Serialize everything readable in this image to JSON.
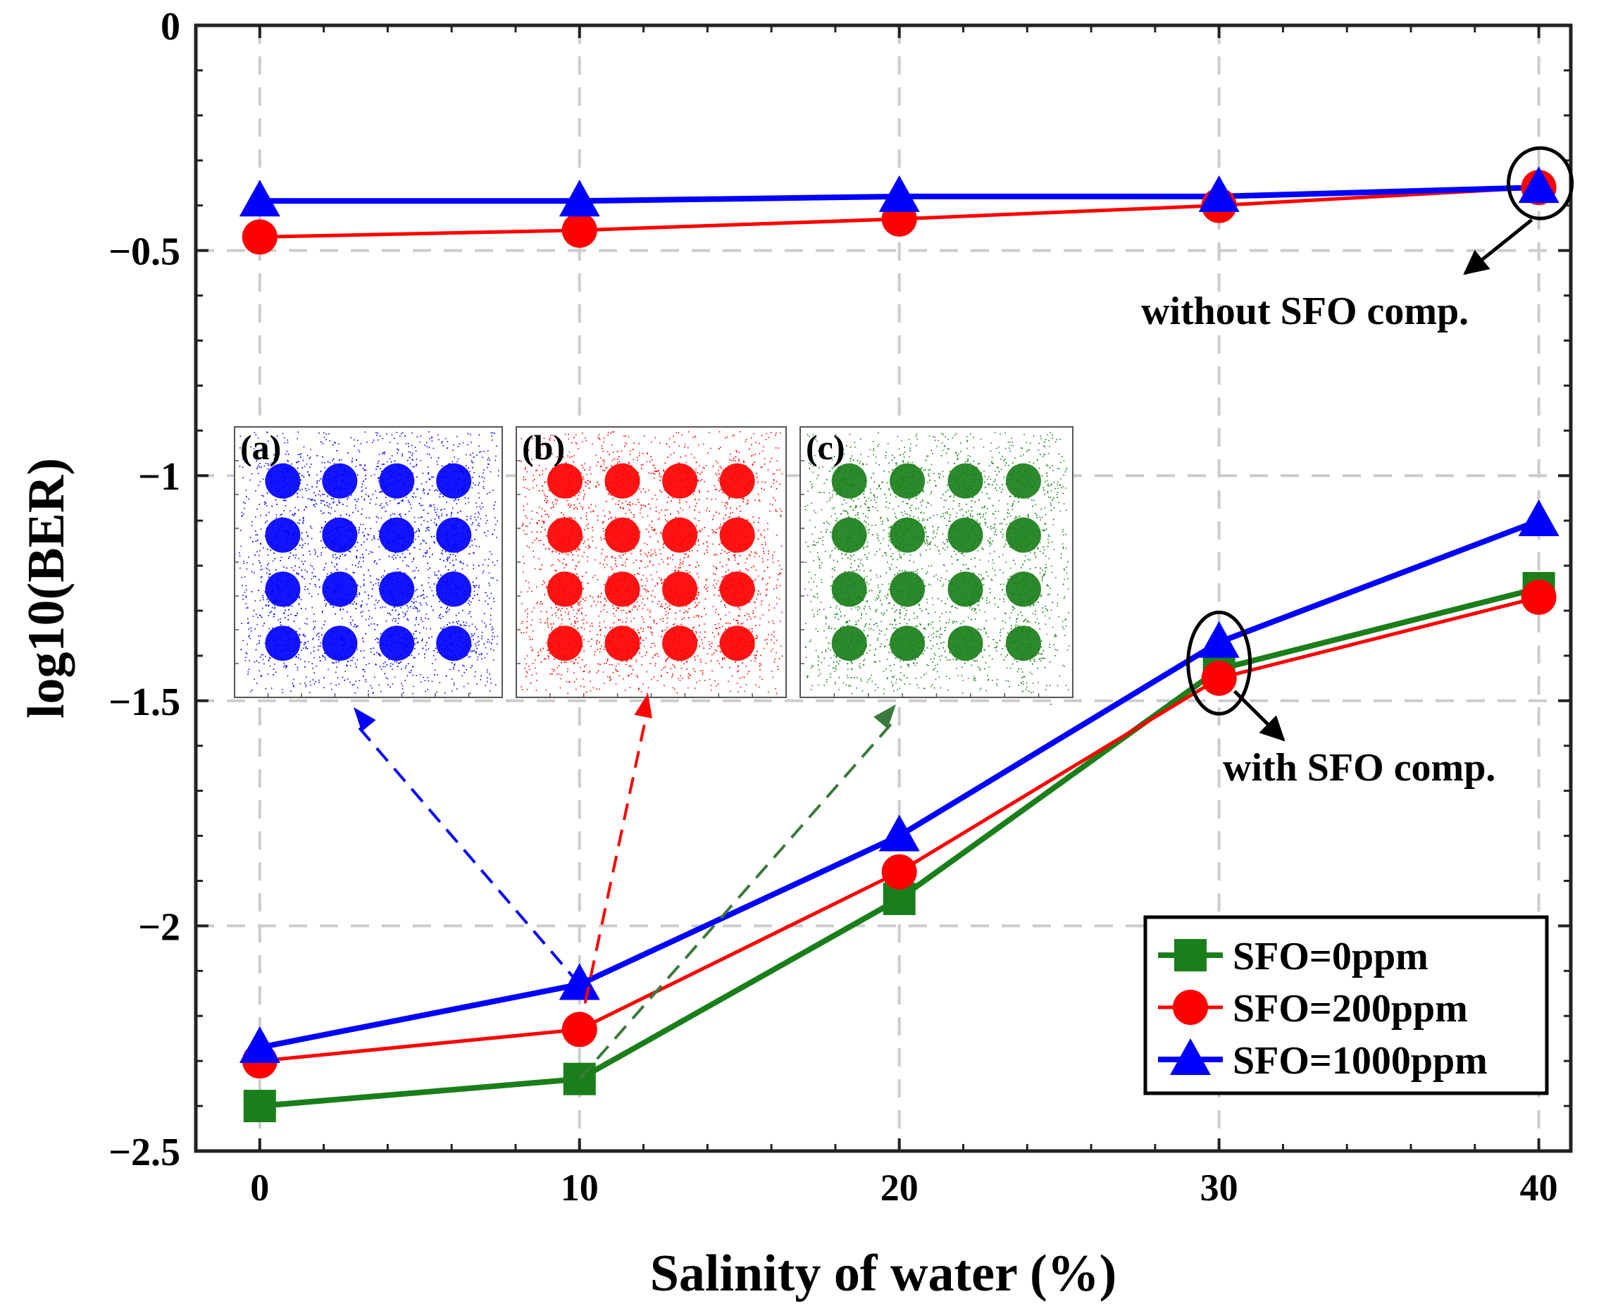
{
  "colors": {
    "green": "#1a7f1a",
    "red": "#ff0000",
    "blue": "#0000ff",
    "dark_green": "#3a7a3a",
    "grid": "#cccccc",
    "axis": "#222222"
  },
  "chart_data": {
    "type": "line",
    "xlabel": "Salinity of water (%)",
    "ylabel": "log10(BER)",
    "xlim": [
      -2,
      41
    ],
    "ylim": [
      -2.5,
      0
    ],
    "xticks": [
      0,
      10,
      20,
      30,
      40
    ],
    "xtick_labels": [
      "0",
      "10",
      "20",
      "30",
      "40"
    ],
    "yticks": [
      0,
      -0.5,
      -1,
      -1.5,
      -2,
      -2.5
    ],
    "ytick_labels": [
      "0",
      "−0.5",
      "−1",
      "−1.5",
      "−2",
      "−2.5"
    ],
    "grid": true,
    "x": [
      0,
      10,
      20,
      30,
      40
    ],
    "series": [
      {
        "name": "SFO=0ppm",
        "group": "with",
        "marker": "square",
        "color": "green",
        "values": [
          -2.4,
          -2.34,
          -1.94,
          -1.43,
          -1.25
        ]
      },
      {
        "name": "SFO=200ppm",
        "group": "with",
        "marker": "circle",
        "color": "red",
        "values": [
          -2.3,
          -2.23,
          -1.88,
          -1.45,
          -1.27
        ]
      },
      {
        "name": "SFO=1000ppm",
        "group": "with",
        "marker": "triangle",
        "color": "blue",
        "values": [
          -2.27,
          -2.13,
          -1.8,
          -1.37,
          -1.1
        ]
      },
      {
        "name": "SFO=200ppm",
        "group": "without",
        "marker": "circle",
        "color": "red",
        "values": [
          -0.47,
          -0.455,
          -0.43,
          -0.4,
          -0.36
        ]
      },
      {
        "name": "SFO=1000ppm",
        "group": "without",
        "marker": "triangle",
        "color": "blue",
        "values": [
          -0.39,
          -0.39,
          -0.38,
          -0.38,
          -0.36
        ]
      }
    ],
    "legend": {
      "position": "bottom-right",
      "entries": [
        {
          "label": "SFO=0ppm",
          "marker": "square",
          "color": "green"
        },
        {
          "label": "SFO=200ppm",
          "marker": "circle",
          "color": "red"
        },
        {
          "label": "SFO=1000ppm",
          "marker": "triangle",
          "color": "blue"
        }
      ]
    },
    "annotations": [
      {
        "text": "without SFO comp.",
        "target_x": 40,
        "target_y": -0.36
      },
      {
        "text": "with SFO comp.",
        "target_x": 30,
        "target_y": -1.41
      }
    ],
    "insets": [
      {
        "label": "(a)",
        "color": "blue",
        "target_x": 10,
        "target_y": -2.13,
        "arrow_color": "blue"
      },
      {
        "label": "(b)",
        "color": "red",
        "target_x": 10,
        "target_y": -2.23,
        "arrow_color": "red"
      },
      {
        "label": "(c)",
        "color": "green",
        "target_x": 10,
        "target_y": -2.34,
        "arrow_color": "dark_green"
      }
    ]
  }
}
